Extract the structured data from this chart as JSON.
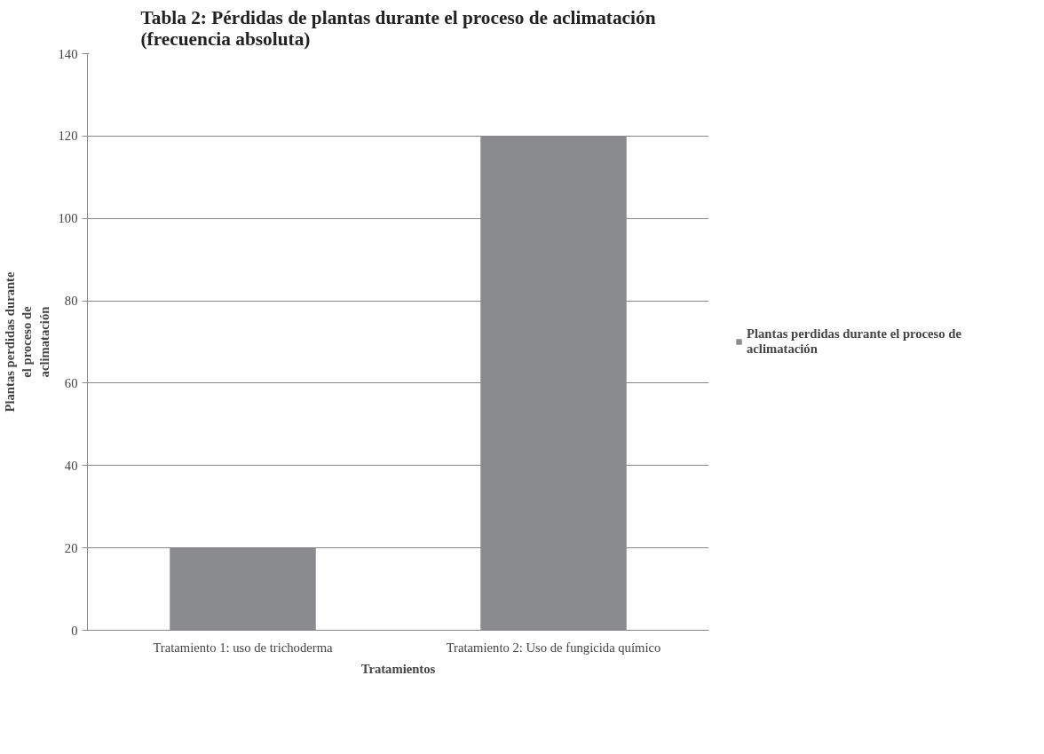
{
  "chart_data": {
    "type": "bar",
    "title": "Tabla 2: Pérdidas de plantas durante el proceso de aclimatación (frecuencia absoluta)",
    "xlabel": "Tratamientos",
    "ylabel": "Plantas perdidas durante el proceso de aclimatación",
    "categories": [
      "Tratamiento 1: uso de trichoderma",
      "Tratamiento 2: Uso de fungicida químico"
    ],
    "series": [
      {
        "name": "Plantas perdidas durante el proceso de aclimatación",
        "color": "#898b8e",
        "values": [
          20,
          120
        ]
      }
    ],
    "ylim": [
      0,
      140
    ],
    "yticks": [
      0,
      20,
      40,
      60,
      80,
      100,
      120,
      140
    ],
    "grid": "y",
    "legend": "right"
  }
}
